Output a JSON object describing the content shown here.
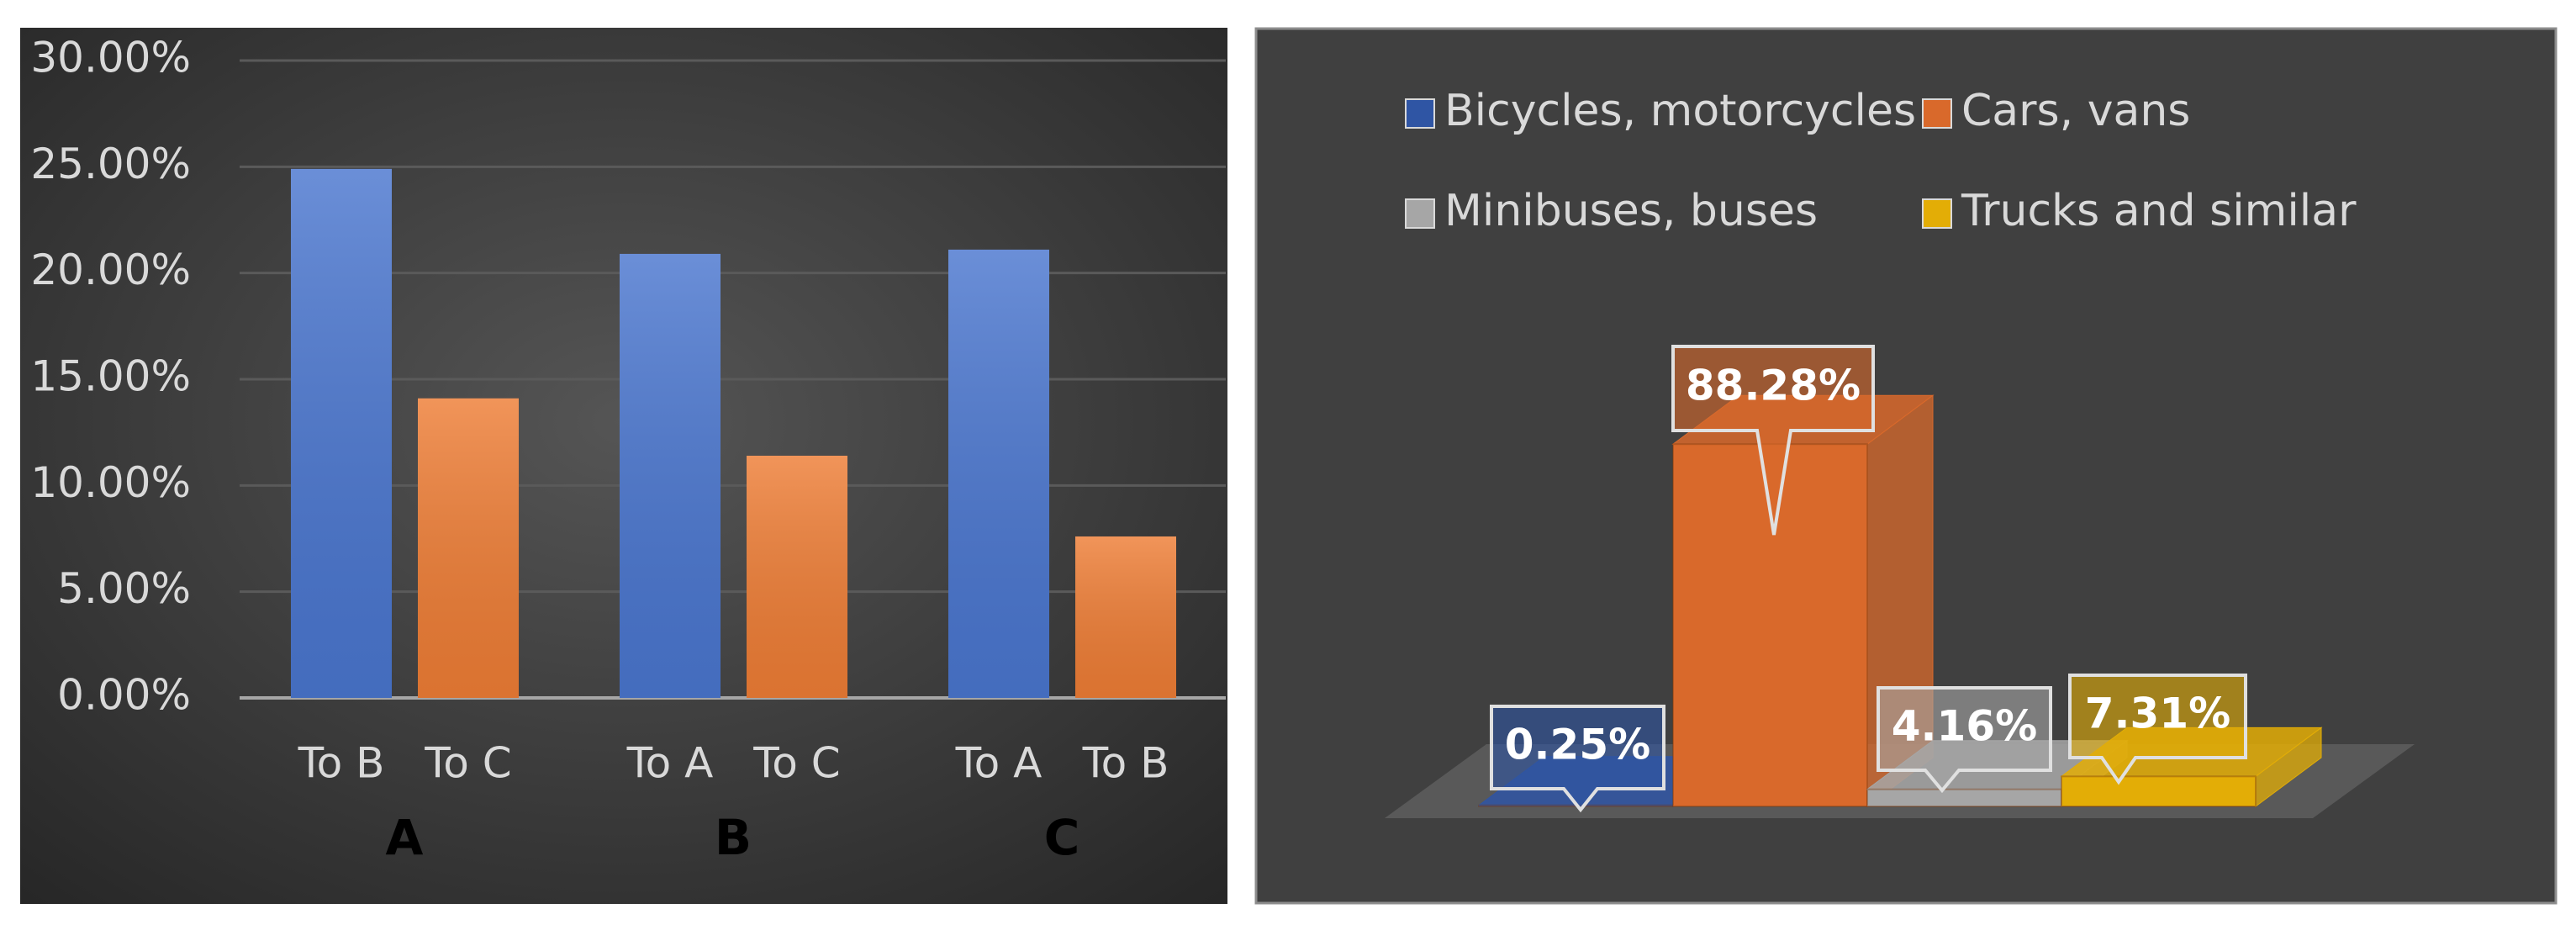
{
  "chart_data": [
    {
      "type": "bar",
      "groups": [
        "A",
        "B",
        "C"
      ],
      "categories": [
        "To B",
        "To C",
        "To A",
        "To C",
        "To A",
        "To B"
      ],
      "values": [
        24.9,
        14.1,
        20.9,
        11.4,
        21.1,
        7.6
      ],
      "colors": [
        "#4a76cf",
        "#ee7d35",
        "#4a76cf",
        "#ee7d35",
        "#4a76cf",
        "#ee7d35"
      ],
      "ylim": [
        0,
        30
      ],
      "yticks": [
        {
          "value": 0,
          "label": "0.00%"
        },
        {
          "value": 5,
          "label": "5.00%"
        },
        {
          "value": 10,
          "label": "10.00%"
        },
        {
          "value": 15,
          "label": "15.00%"
        },
        {
          "value": 20,
          "label": "20.00%"
        },
        {
          "value": 25,
          "label": "25.00%"
        },
        {
          "value": 30,
          "label": "30.00%"
        }
      ],
      "grid": true
    },
    {
      "type": "bar3d",
      "categories": [
        "Bicycles, motorcycles",
        "Cars, vans",
        "Minibuses, buses",
        "Trucks and similar"
      ],
      "values": [
        0.25,
        88.28,
        4.16,
        7.31
      ],
      "value_labels": [
        "0.25%",
        "88.28%",
        "4.16%",
        "7.31%"
      ],
      "colors": [
        "#2f55a4",
        "#d9692b",
        "#a6a6a6",
        "#e3ad06"
      ]
    }
  ]
}
